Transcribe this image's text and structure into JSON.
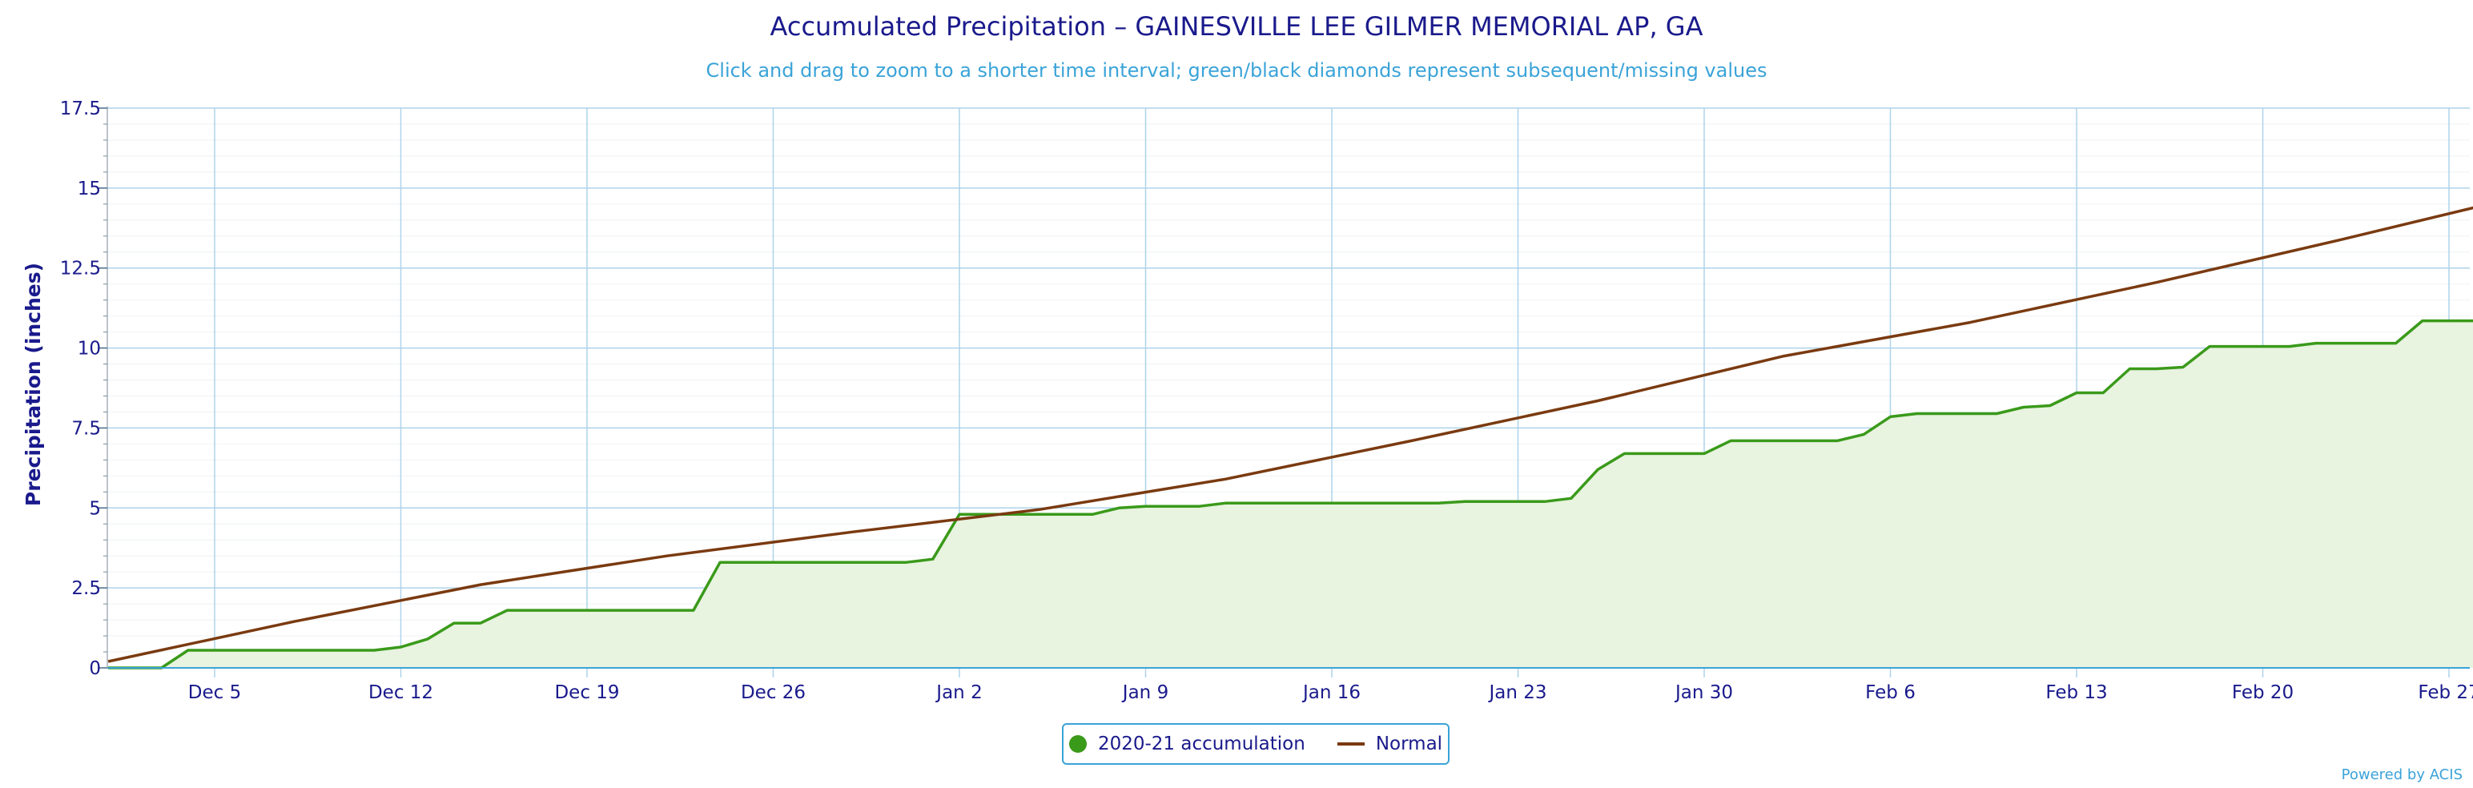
{
  "chart_data": {
    "type": "line",
    "title": "Accumulated Precipitation – GAINESVILLE LEE GILMER MEMORIAL AP, GA",
    "subtitle": "Click and drag to zoom to a shorter time interval; green/black diamonds represent subsequent/missing values",
    "ylabel": "Precipitation (inches)",
    "ylim": [
      0,
      17.5
    ],
    "yticks": [
      "0",
      "2.5",
      "5",
      "7.5",
      "10",
      "12.5",
      "15",
      "17.5"
    ],
    "x_range": [
      "2020-12-01",
      "2021-02-28"
    ],
    "xticks": [
      {
        "date": "2020-12-05",
        "label": "Dec 5"
      },
      {
        "date": "2020-12-12",
        "label": "Dec 12"
      },
      {
        "date": "2020-12-19",
        "label": "Dec 19"
      },
      {
        "date": "2020-12-26",
        "label": "Dec 26"
      },
      {
        "date": "2021-01-02",
        "label": "Jan 2"
      },
      {
        "date": "2021-01-09",
        "label": "Jan 9"
      },
      {
        "date": "2021-01-16",
        "label": "Jan 16"
      },
      {
        "date": "2021-01-23",
        "label": "Jan 23"
      },
      {
        "date": "2021-01-30",
        "label": "Jan 30"
      },
      {
        "date": "2021-02-06",
        "label": "Feb 6"
      },
      {
        "date": "2021-02-13",
        "label": "Feb 13"
      },
      {
        "date": "2021-02-20",
        "label": "Feb 20"
      },
      {
        "date": "2021-02-27",
        "label": "Feb 27"
      }
    ],
    "grid": true,
    "legend_position": "bottom-center",
    "series": [
      {
        "name": "2020-21 accumulation",
        "color": "#3a9a1a",
        "fill": "#e8f3e0",
        "points": [
          [
            "2020-12-01",
            0
          ],
          [
            "2020-12-03",
            0
          ],
          [
            "2020-12-04",
            0.55
          ],
          [
            "2020-12-11",
            0.55
          ],
          [
            "2020-12-12",
            0.65
          ],
          [
            "2020-12-13",
            0.9
          ],
          [
            "2020-12-14",
            1.4
          ],
          [
            "2020-12-15",
            1.4
          ],
          [
            "2020-12-16",
            1.8
          ],
          [
            "2020-12-23",
            1.8
          ],
          [
            "2020-12-24",
            3.3
          ],
          [
            "2020-12-31",
            3.3
          ],
          [
            "2021-01-01",
            3.4
          ],
          [
            "2021-01-02",
            4.8
          ],
          [
            "2021-01-05",
            4.8
          ],
          [
            "2021-01-06",
            4.8
          ],
          [
            "2021-01-07",
            4.8
          ],
          [
            "2021-01-08",
            5.0
          ],
          [
            "2021-01-09",
            5.05
          ],
          [
            "2021-01-11",
            5.05
          ],
          [
            "2021-01-12",
            5.15
          ],
          [
            "2021-01-20",
            5.15
          ],
          [
            "2021-01-21",
            5.2
          ],
          [
            "2021-01-24",
            5.2
          ],
          [
            "2021-01-25",
            5.3
          ],
          [
            "2021-01-26",
            6.2
          ],
          [
            "2021-01-27",
            6.7
          ],
          [
            "2021-01-30",
            6.7
          ],
          [
            "2021-01-31",
            7.1
          ],
          [
            "2021-02-04",
            7.1
          ],
          [
            "2021-02-05",
            7.3
          ],
          [
            "2021-02-06",
            7.85
          ],
          [
            "2021-02-07",
            7.95
          ],
          [
            "2021-02-10",
            7.95
          ],
          [
            "2021-02-11",
            8.15
          ],
          [
            "2021-02-12",
            8.2
          ],
          [
            "2021-02-13",
            8.6
          ],
          [
            "2021-02-14",
            8.6
          ],
          [
            "2021-02-15",
            9.35
          ],
          [
            "2021-02-16",
            9.35
          ],
          [
            "2021-02-17",
            9.4
          ],
          [
            "2021-02-18",
            10.05
          ],
          [
            "2021-02-21",
            10.05
          ],
          [
            "2021-02-22",
            10.15
          ],
          [
            "2021-02-25",
            10.15
          ],
          [
            "2021-02-26",
            10.85
          ],
          [
            "2021-02-28",
            10.85
          ]
        ]
      },
      {
        "name": "Normal",
        "color": "#7a3a10",
        "points": [
          [
            "2020-12-01",
            0.2
          ],
          [
            "2020-12-08",
            1.45
          ],
          [
            "2020-12-15",
            2.6
          ],
          [
            "2020-12-22",
            3.5
          ],
          [
            "2020-12-29",
            4.25
          ],
          [
            "2021-01-05",
            4.95
          ],
          [
            "2021-01-12",
            5.9
          ],
          [
            "2021-01-19",
            7.1
          ],
          [
            "2021-01-26",
            8.35
          ],
          [
            "2021-02-02",
            9.75
          ],
          [
            "2021-02-09",
            10.8
          ],
          [
            "2021-02-16",
            12.05
          ],
          [
            "2021-02-23",
            13.4
          ],
          [
            "2021-02-28",
            14.4
          ]
        ]
      }
    ]
  },
  "legend": {
    "accumulation_label": "2020-21 accumulation",
    "normal_label": "Normal",
    "accumulation_color": "#3a9a1a",
    "normal_color": "#7a3a10"
  },
  "credit": "Powered by ACIS"
}
